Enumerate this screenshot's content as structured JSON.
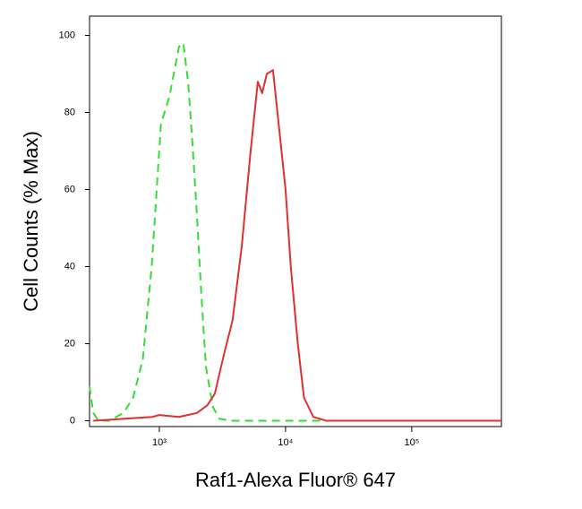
{
  "chart_data": {
    "type": "line",
    "xlabel": "Raf1-Alexa Fluor® 647",
    "ylabel": "Cell Counts (% Max)",
    "xscale": "log",
    "xlim": [
      280,
      513000
    ],
    "ylim": [
      -1.5,
      105
    ],
    "xticks": [
      {
        "value": 1000,
        "label": "10³"
      },
      {
        "value": 10000,
        "label": "10⁴"
      },
      {
        "value": 100000,
        "label": "10⁵"
      }
    ],
    "yticks": [
      0,
      20,
      40,
      60,
      80,
      100
    ],
    "series": [
      {
        "color": "#33dd33",
        "dash": true,
        "x": [
          280,
          300,
          330,
          400,
          520,
          620,
          740,
          870,
          1030,
          1200,
          1430,
          1550,
          1690,
          1830,
          1980,
          2150,
          2340,
          2660,
          3000,
          3800,
          12000,
          513000
        ],
        "values": [
          9,
          2,
          0,
          0,
          2,
          6,
          16,
          40,
          77,
          84,
          97,
          98,
          88,
          72,
          54,
          33,
          14,
          3.5,
          0.5,
          0,
          0,
          0
        ]
      },
      {
        "color": "#e03030",
        "dash": false,
        "x": [
          300,
          880,
          1000,
          1430,
          1980,
          2400,
          2750,
          3240,
          3800,
          4490,
          5290,
          6030,
          6530,
          7100,
          7950,
          8630,
          10000,
          11000,
          12500,
          14000,
          16600,
          21100,
          513000
        ],
        "values": [
          0,
          1,
          1.5,
          1,
          2,
          4,
          7,
          17,
          26,
          45,
          70,
          88,
          85,
          90,
          91,
          80,
          60,
          40,
          20,
          6,
          1,
          0,
          0
        ]
      }
    ]
  }
}
